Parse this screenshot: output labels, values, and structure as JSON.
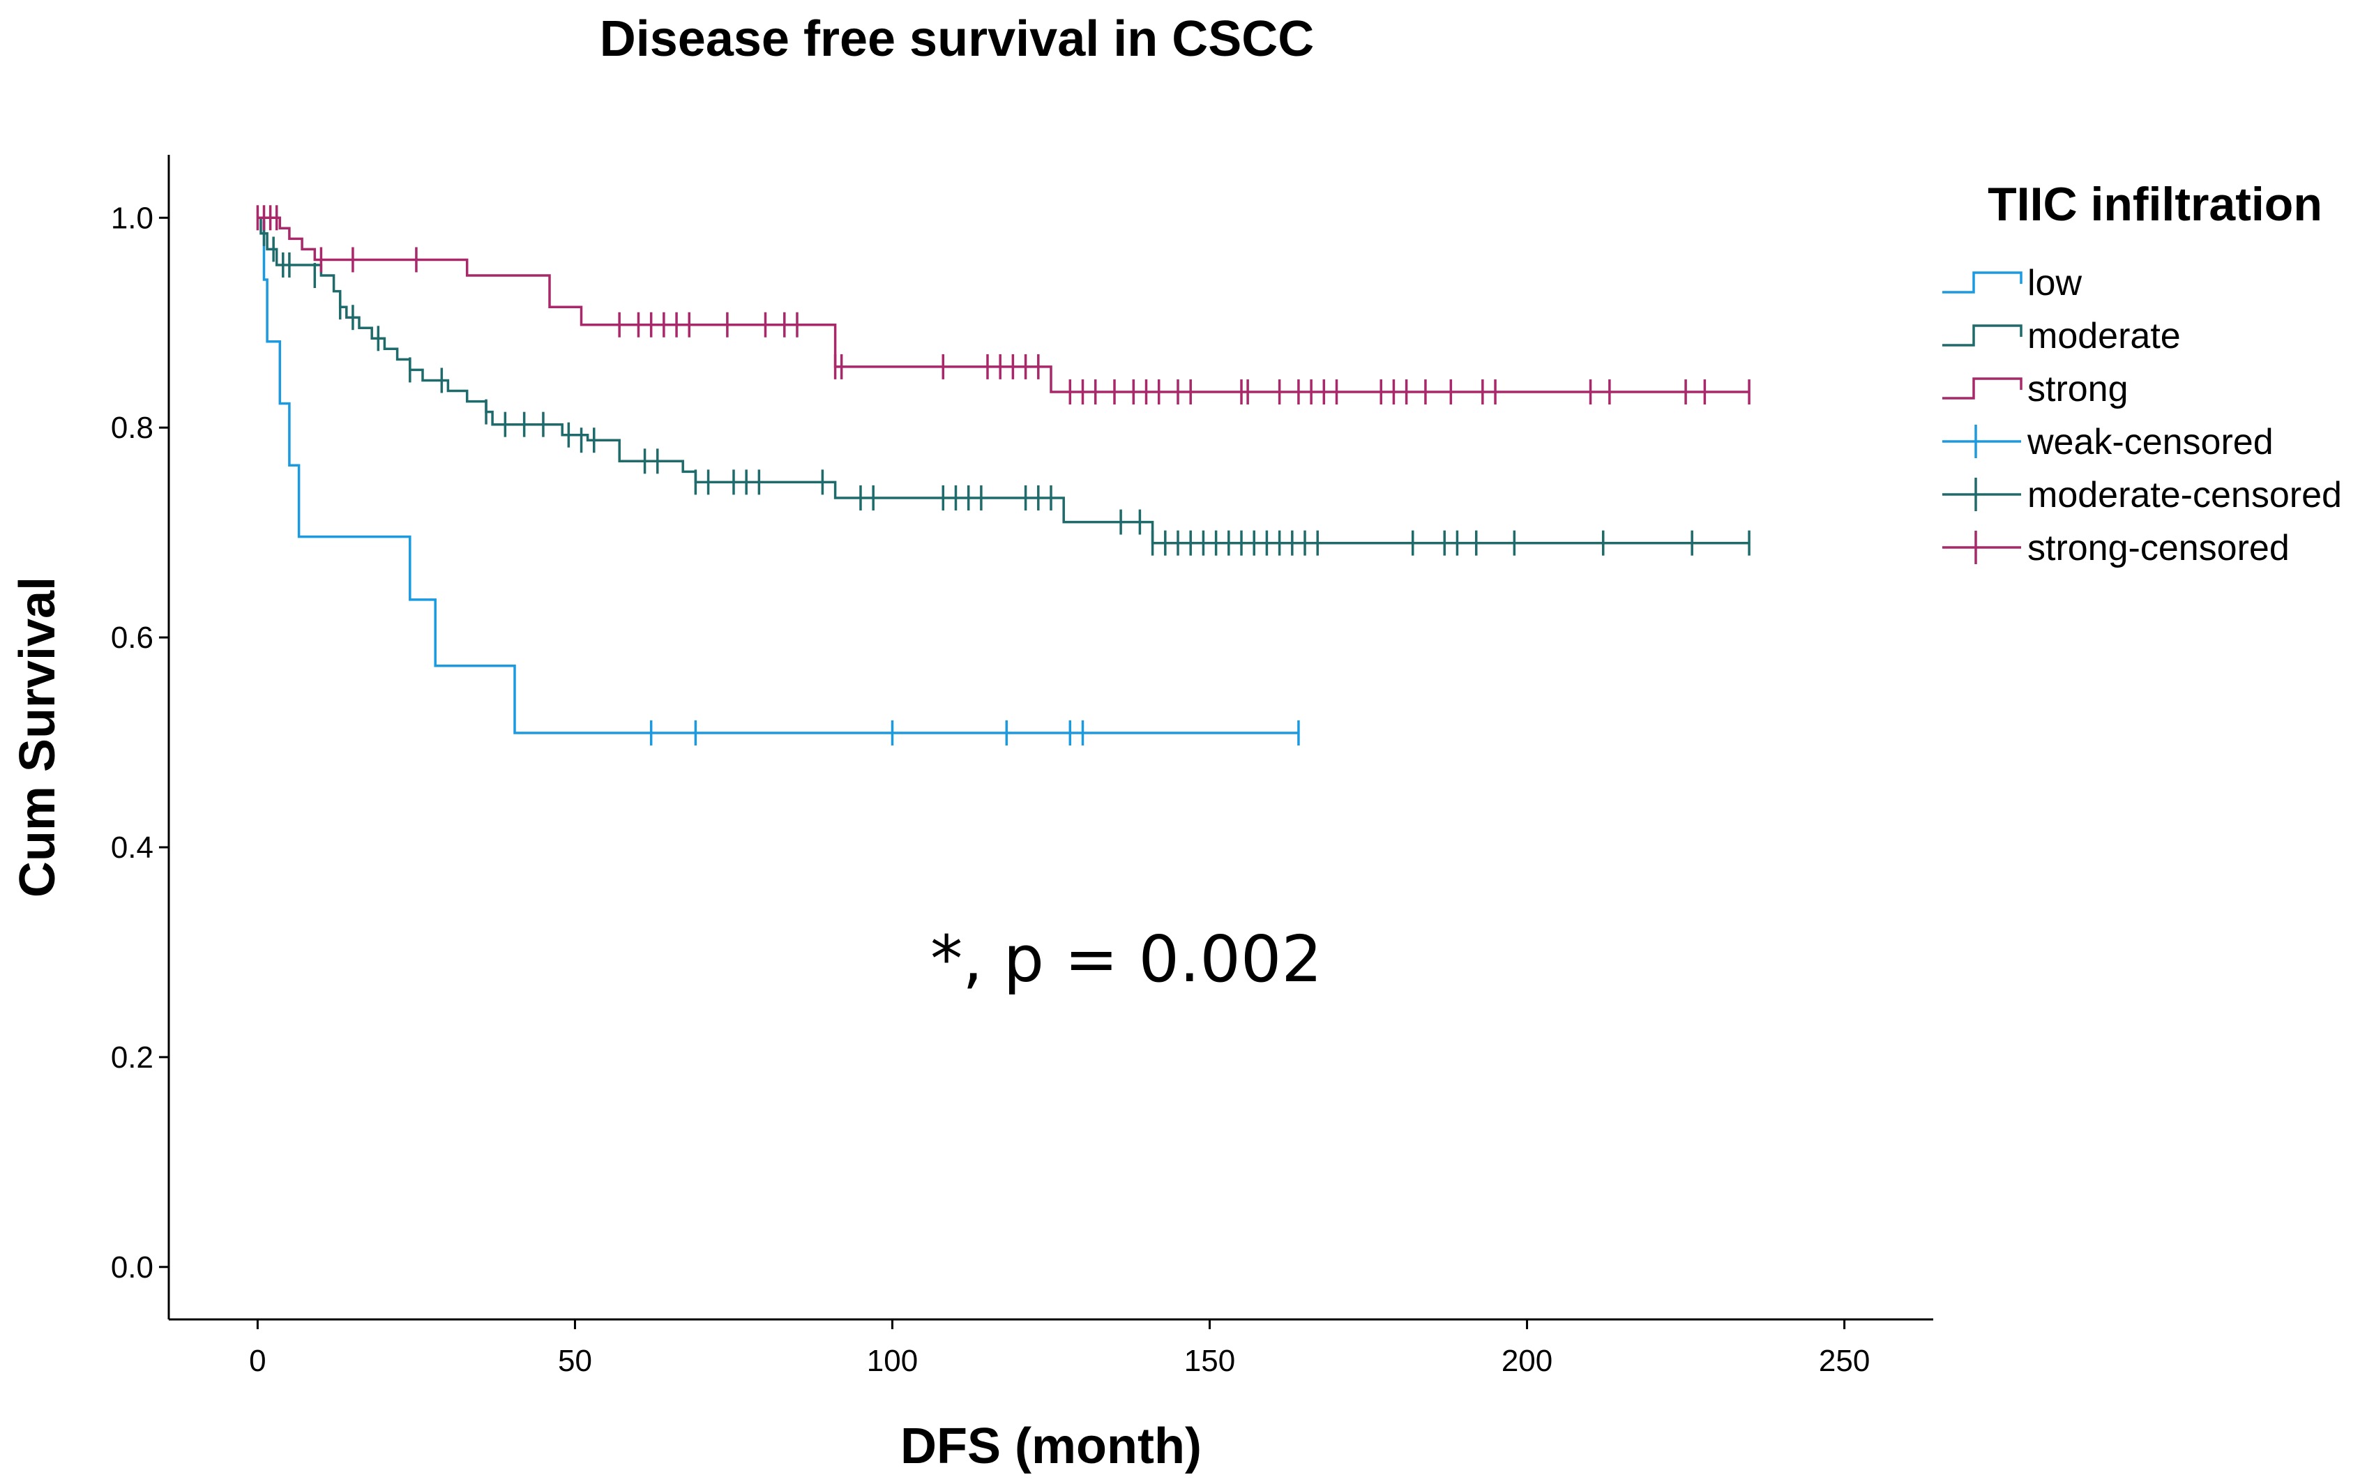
{
  "chart_data": {
    "type": "line",
    "subtype": "kaplan-meier step",
    "title": "Disease free survival in CSCC",
    "xlabel": "DFS (month)",
    "ylabel": "Cum Survival",
    "xlim": [
      -14,
      264
    ],
    "ylim": [
      -0.05,
      1.06
    ],
    "xticks": [
      0,
      50,
      100,
      150,
      200,
      250
    ],
    "yticks": [
      0.0,
      0.2,
      0.4,
      0.6,
      0.8,
      1.0
    ],
    "xtick_labels": [
      "0",
      "50",
      "100",
      "150",
      "200",
      "250"
    ],
    "ytick_labels": [
      "0.0",
      "0.2",
      "0.4",
      "0.6",
      "0.8",
      "1.0"
    ],
    "grid": false,
    "legend": {
      "title": "TIIC infiltration",
      "position": "right",
      "entries": [
        {
          "label": "low",
          "series": "low",
          "kind": "step"
        },
        {
          "label": "moderate",
          "series": "moderate",
          "kind": "step"
        },
        {
          "label": "strong",
          "series": "strong",
          "kind": "step"
        },
        {
          "label": "weak-censored",
          "series": "low",
          "kind": "censor"
        },
        {
          "label": "moderate-censored",
          "series": "moderate",
          "kind": "censor"
        },
        {
          "label": "strong-censored",
          "series": "strong",
          "kind": "censor"
        }
      ]
    },
    "annotation": "*, p = 0.002",
    "series": [
      {
        "name": "low",
        "color": "#1b9ae0",
        "steps": [
          [
            0,
            1.0
          ],
          [
            1,
            0.941
          ],
          [
            1.5,
            0.882
          ],
          [
            3.5,
            0.823
          ],
          [
            5,
            0.764
          ],
          [
            6.5,
            0.696
          ],
          [
            24,
            0.636
          ],
          [
            28,
            0.573
          ],
          [
            40.5,
            0.509
          ],
          [
            164,
            0.509
          ]
        ],
        "censored": [
          [
            62,
            0.509
          ],
          [
            69,
            0.509
          ],
          [
            100,
            0.509
          ],
          [
            118,
            0.509
          ],
          [
            128,
            0.509
          ],
          [
            130,
            0.509
          ],
          [
            164,
            0.509
          ]
        ]
      },
      {
        "name": "moderate",
        "color": "#1f6b6b",
        "steps": [
          [
            0,
            1.0
          ],
          [
            0.5,
            0.985
          ],
          [
            1.5,
            0.97
          ],
          [
            3,
            0.955
          ],
          [
            10,
            0.945
          ],
          [
            12,
            0.93
          ],
          [
            13,
            0.915
          ],
          [
            14,
            0.905
          ],
          [
            16,
            0.895
          ],
          [
            18,
            0.885
          ],
          [
            20,
            0.875
          ],
          [
            22,
            0.865
          ],
          [
            24,
            0.855
          ],
          [
            26,
            0.845
          ],
          [
            30,
            0.835
          ],
          [
            33,
            0.825
          ],
          [
            36,
            0.815
          ],
          [
            37,
            0.803
          ],
          [
            48,
            0.793
          ],
          [
            52,
            0.788
          ],
          [
            57,
            0.768
          ],
          [
            67,
            0.758
          ],
          [
            69,
            0.748
          ],
          [
            91,
            0.733
          ],
          [
            127,
            0.71
          ],
          [
            141,
            0.69
          ],
          [
            235,
            0.69
          ]
        ],
        "censored": [
          [
            1,
            0.985
          ],
          [
            2.5,
            0.97
          ],
          [
            4,
            0.955
          ],
          [
            5,
            0.955
          ],
          [
            9,
            0.945
          ],
          [
            13,
            0.915
          ],
          [
            15,
            0.905
          ],
          [
            19,
            0.885
          ],
          [
            24,
            0.855
          ],
          [
            29,
            0.845
          ],
          [
            36,
            0.815
          ],
          [
            39,
            0.803
          ],
          [
            42,
            0.803
          ],
          [
            45,
            0.803
          ],
          [
            49,
            0.793
          ],
          [
            51,
            0.788
          ],
          [
            53,
            0.788
          ],
          [
            61,
            0.768
          ],
          [
            63,
            0.768
          ],
          [
            69,
            0.748
          ],
          [
            71,
            0.748
          ],
          [
            75,
            0.748
          ],
          [
            77,
            0.748
          ],
          [
            79,
            0.748
          ],
          [
            89,
            0.748
          ],
          [
            95,
            0.733
          ],
          [
            97,
            0.733
          ],
          [
            108,
            0.733
          ],
          [
            110,
            0.733
          ],
          [
            112,
            0.733
          ],
          [
            114,
            0.733
          ],
          [
            121,
            0.733
          ],
          [
            123,
            0.733
          ],
          [
            125,
            0.733
          ],
          [
            136,
            0.71
          ],
          [
            139,
            0.71
          ],
          [
            141,
            0.69
          ],
          [
            143,
            0.69
          ],
          [
            145,
            0.69
          ],
          [
            147,
            0.69
          ],
          [
            149,
            0.69
          ],
          [
            151,
            0.69
          ],
          [
            153,
            0.69
          ],
          [
            155,
            0.69
          ],
          [
            157,
            0.69
          ],
          [
            159,
            0.69
          ],
          [
            161,
            0.69
          ],
          [
            163,
            0.69
          ],
          [
            165,
            0.69
          ],
          [
            167,
            0.69
          ],
          [
            182,
            0.69
          ],
          [
            187,
            0.69
          ],
          [
            189,
            0.69
          ],
          [
            192,
            0.69
          ],
          [
            198,
            0.69
          ],
          [
            212,
            0.69
          ],
          [
            226,
            0.69
          ],
          [
            235,
            0.69
          ]
        ]
      },
      {
        "name": "strong",
        "color": "#a8286a",
        "steps": [
          [
            0,
            1.0
          ],
          [
            3.5,
            0.99
          ],
          [
            5,
            0.98
          ],
          [
            7,
            0.97
          ],
          [
            9,
            0.96
          ],
          [
            33,
            0.945
          ],
          [
            46,
            0.915
          ],
          [
            51,
            0.898
          ],
          [
            91,
            0.858
          ],
          [
            125,
            0.834
          ],
          [
            235,
            0.834
          ]
        ],
        "censored": [
          [
            0,
            1.0
          ],
          [
            1,
            1.0
          ],
          [
            2,
            1.0
          ],
          [
            3,
            1.0
          ],
          [
            10,
            0.96
          ],
          [
            15,
            0.96
          ],
          [
            25,
            0.96
          ],
          [
            57,
            0.898
          ],
          [
            60,
            0.898
          ],
          [
            62,
            0.898
          ],
          [
            64,
            0.898
          ],
          [
            66,
            0.898
          ],
          [
            68,
            0.898
          ],
          [
            74,
            0.898
          ],
          [
            80,
            0.898
          ],
          [
            83,
            0.898
          ],
          [
            85,
            0.898
          ],
          [
            91,
            0.858
          ],
          [
            92,
            0.858
          ],
          [
            108,
            0.858
          ],
          [
            115,
            0.858
          ],
          [
            117,
            0.858
          ],
          [
            119,
            0.858
          ],
          [
            121,
            0.858
          ],
          [
            123,
            0.858
          ],
          [
            128,
            0.834
          ],
          [
            130,
            0.834
          ],
          [
            132,
            0.834
          ],
          [
            135,
            0.834
          ],
          [
            138,
            0.834
          ],
          [
            140,
            0.834
          ],
          [
            142,
            0.834
          ],
          [
            145,
            0.834
          ],
          [
            147,
            0.834
          ],
          [
            155,
            0.834
          ],
          [
            156,
            0.834
          ],
          [
            161,
            0.834
          ],
          [
            164,
            0.834
          ],
          [
            166,
            0.834
          ],
          [
            168,
            0.834
          ],
          [
            170,
            0.834
          ],
          [
            177,
            0.834
          ],
          [
            179,
            0.834
          ],
          [
            181,
            0.834
          ],
          [
            184,
            0.834
          ],
          [
            188,
            0.834
          ],
          [
            193,
            0.834
          ],
          [
            195,
            0.834
          ],
          [
            210,
            0.834
          ],
          [
            213,
            0.834
          ],
          [
            225,
            0.834
          ],
          [
            228,
            0.834
          ],
          [
            235,
            0.834
          ]
        ]
      }
    ]
  }
}
